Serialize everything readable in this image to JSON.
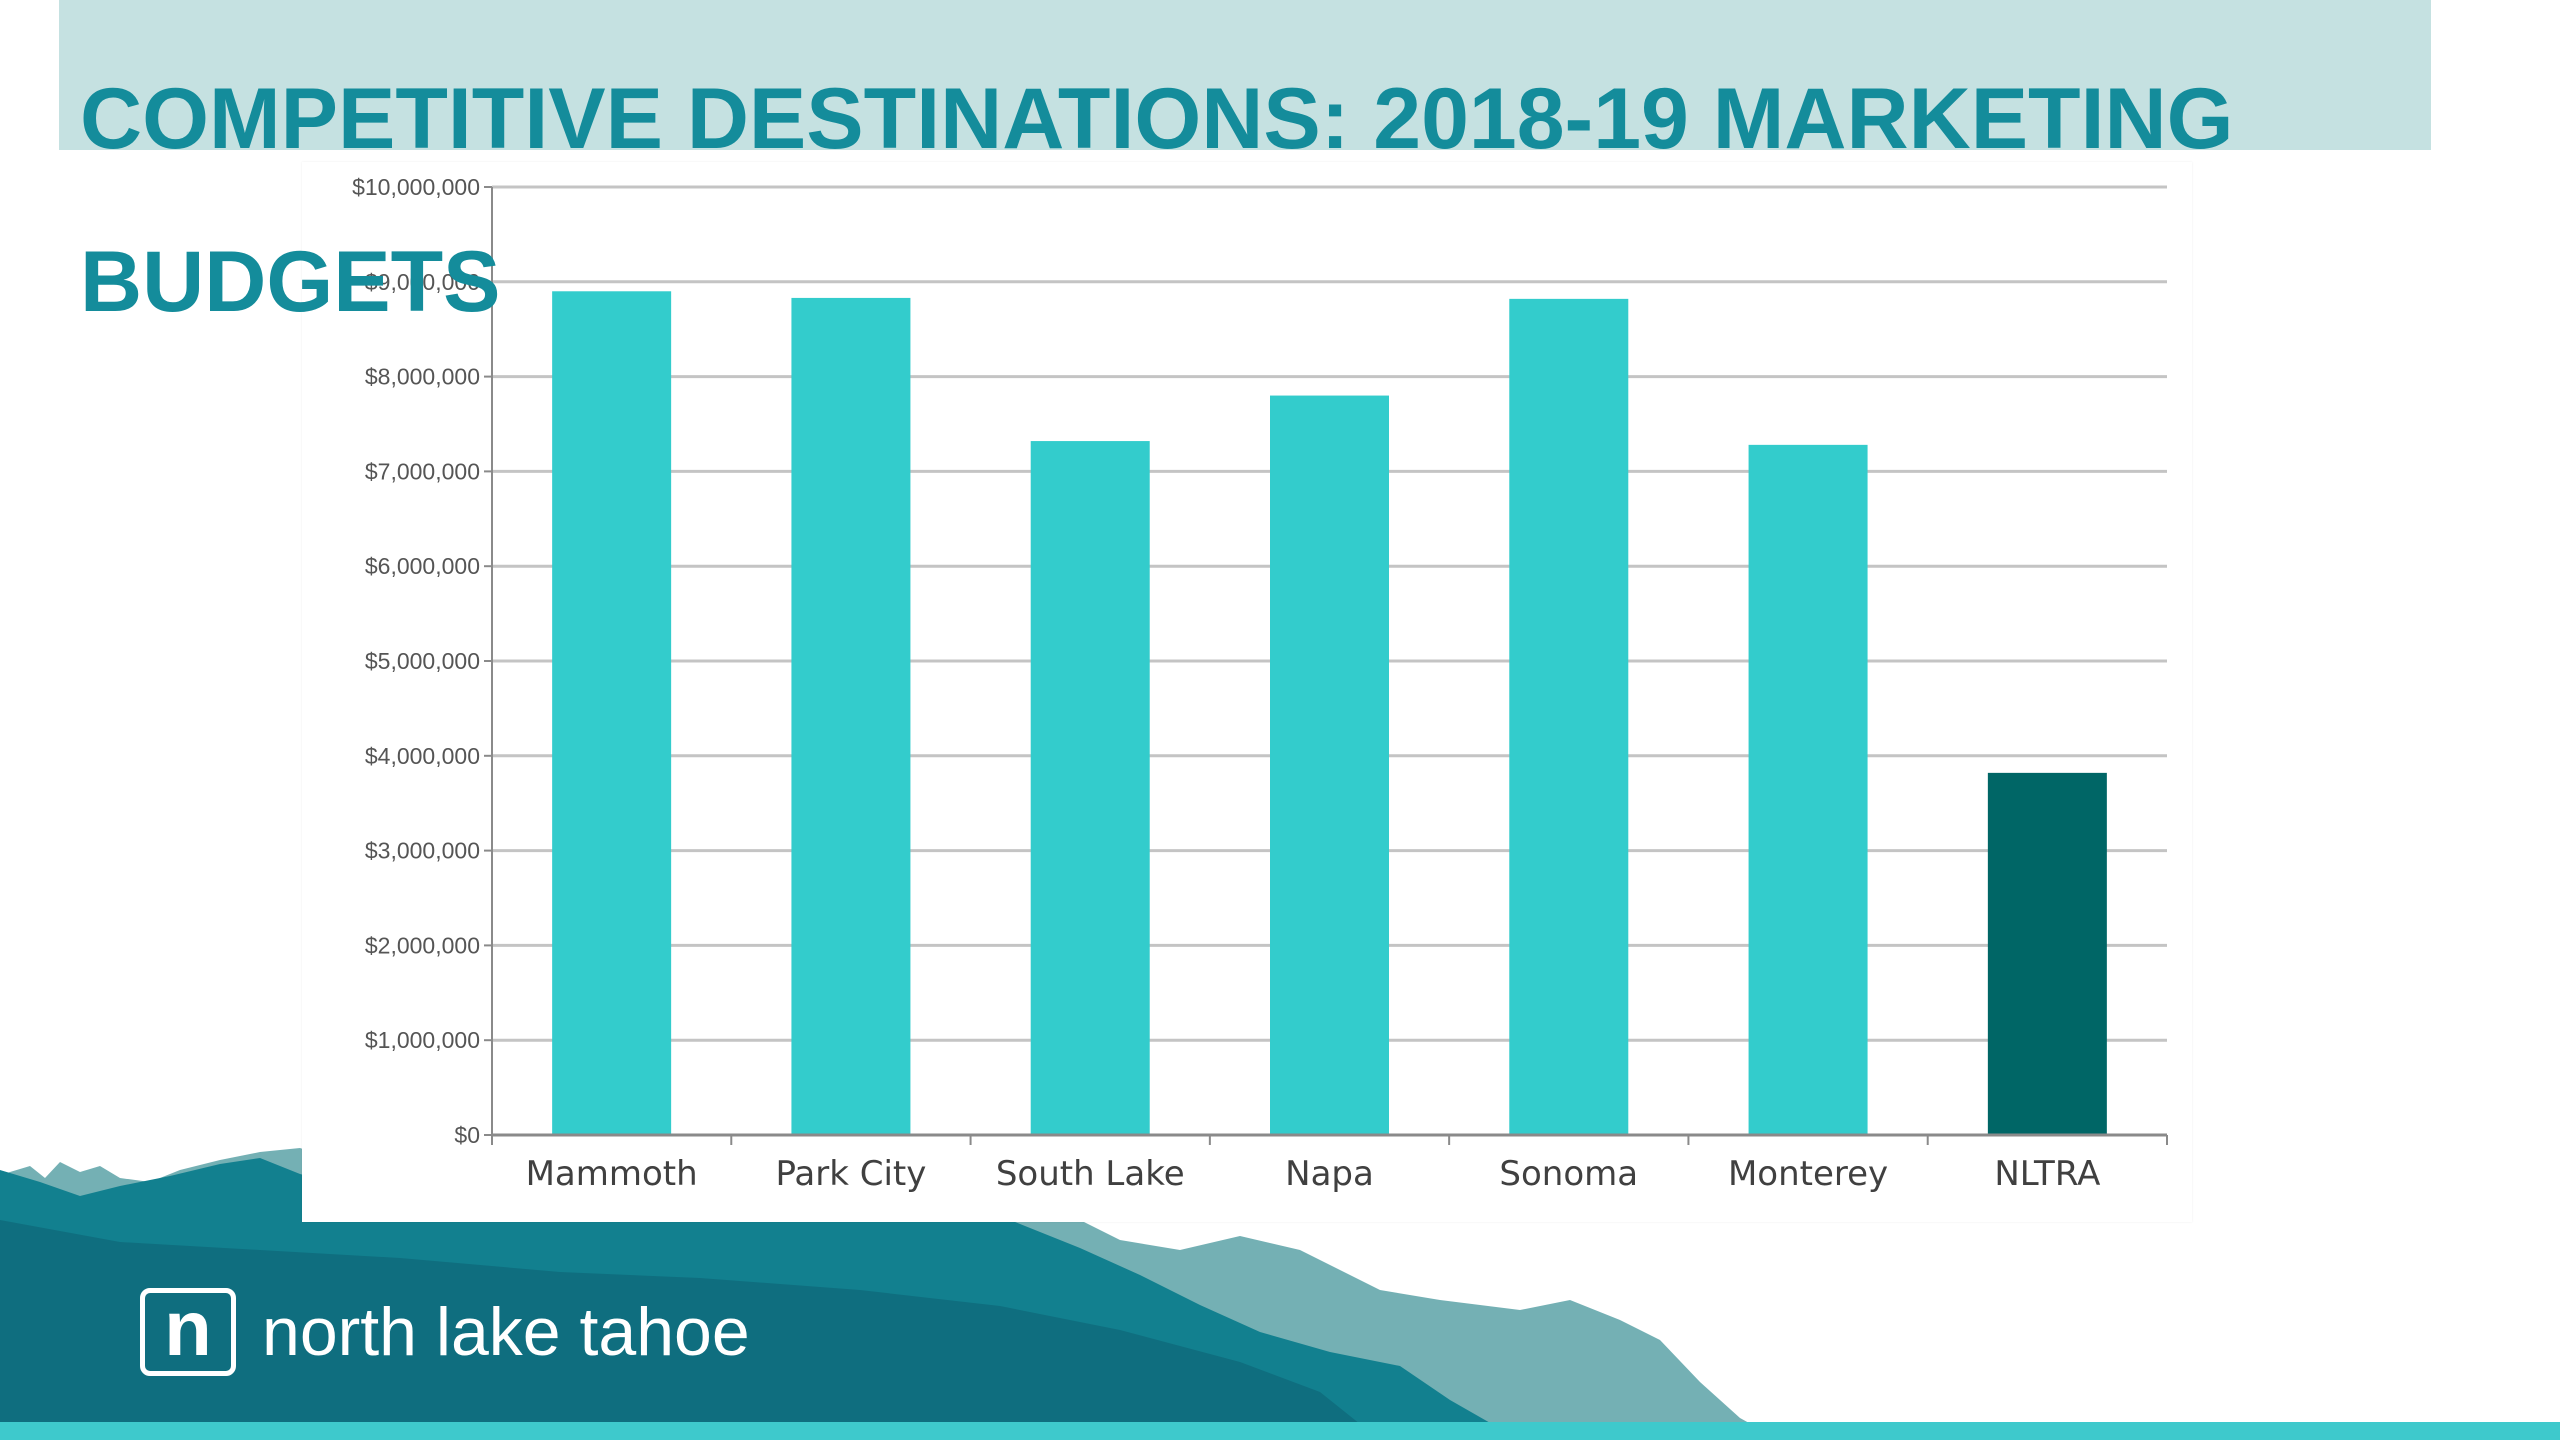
{
  "slide": {
    "title": "COMPETITIVE DESTINATIONS: 2018-19 MARKETING BUDGETS"
  },
  "brand": {
    "logo_letter": "n",
    "name": "north lake tahoe"
  },
  "colors": {
    "title": "#148c9b",
    "title_band": "#c5e1e1",
    "bar": "#33cccc",
    "bar_highlight": "#006666",
    "mountain_dark": "#0f6e7f",
    "mountain_mid": "#12808f",
    "mountain_light": "#74b0b4",
    "strip": "#3ec9cc"
  },
  "chart_data": {
    "type": "bar",
    "title": "",
    "xlabel": "",
    "ylabel": "",
    "categories": [
      "Mammoth",
      "Park City",
      "South Lake",
      "Napa",
      "Sonoma",
      "Monterey",
      "NLTRA"
    ],
    "values": [
      8900000,
      8830000,
      7320000,
      7800000,
      8820000,
      7280000,
      3820000
    ],
    "highlight_category": "NLTRA",
    "ylim": [
      0,
      10000000
    ],
    "yticks": [
      0,
      1000000,
      2000000,
      3000000,
      4000000,
      5000000,
      6000000,
      7000000,
      8000000,
      9000000,
      10000000
    ],
    "ytick_labels": [
      "$0",
      "$1,000,000",
      "$2,000,000",
      "$3,000,000",
      "$4,000,000",
      "$5,000,000",
      "$6,000,000",
      "$7,000,000",
      "$8,000,000",
      "$9,000,000",
      "$10,000,000"
    ],
    "grid": true,
    "legend": "none"
  }
}
